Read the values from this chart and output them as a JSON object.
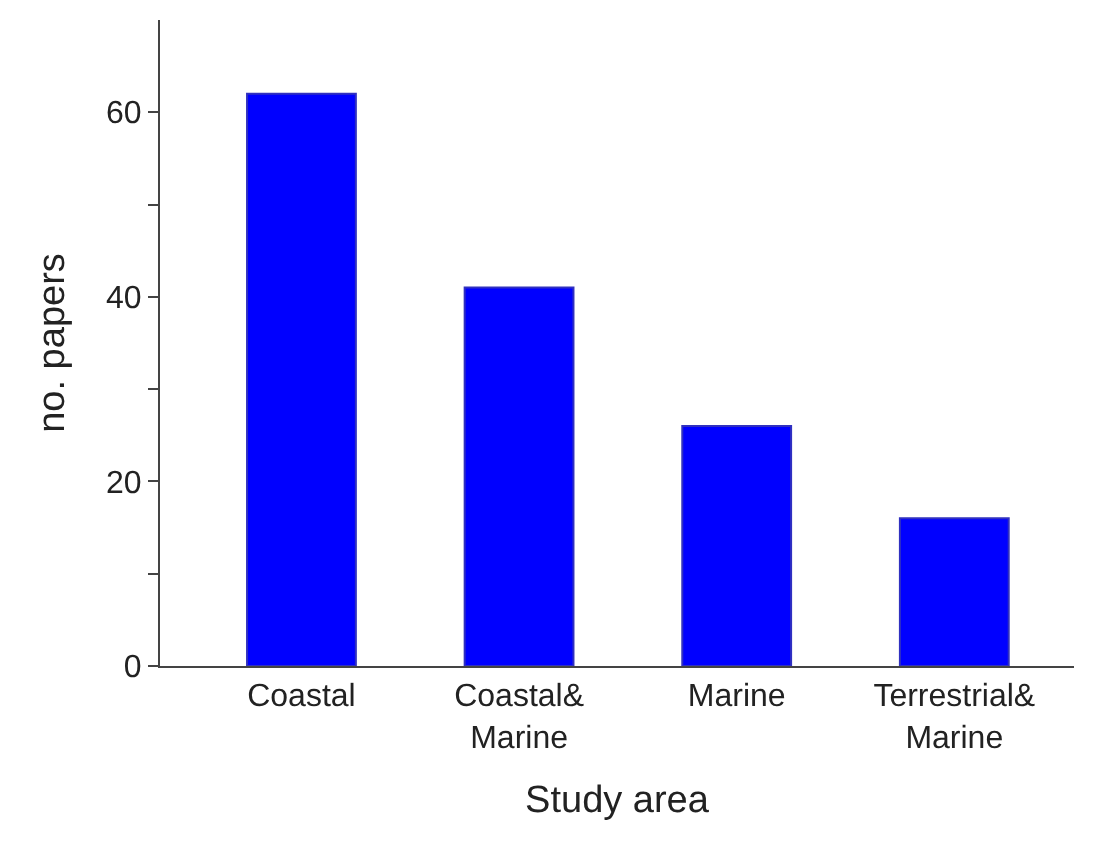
{
  "chart_data": {
    "type": "bar",
    "xlabel": "Study area",
    "ylabel": "no. papers",
    "categories": [
      "Coastal",
      "Coastal&\nMarine",
      "Marine",
      "Terrestrial&\nMarine"
    ],
    "values": [
      62,
      41,
      26,
      16
    ],
    "color": "#0000ff",
    "ylim": [
      0,
      70
    ],
    "yticks": [
      0,
      {
        "value": 10,
        "label": null
      },
      20,
      {
        "value": 30,
        "label": null
      },
      40,
      {
        "value": 50,
        "label": null
      },
      60
    ]
  }
}
